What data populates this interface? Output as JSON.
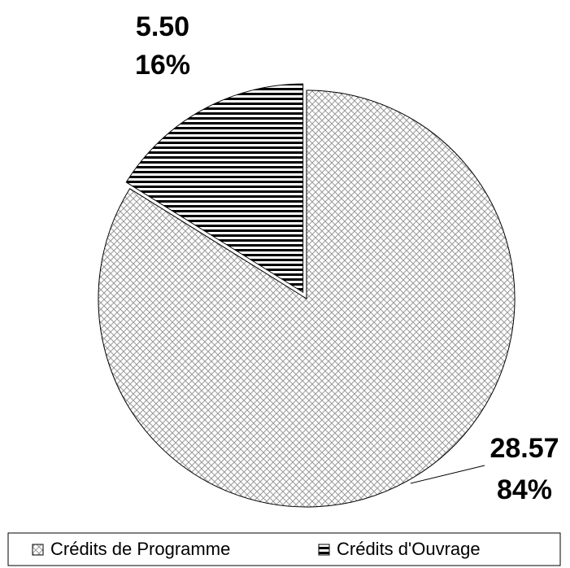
{
  "chart_data": {
    "type": "pie",
    "categories": [
      "Crédits de Programme",
      "Crédits d'Ouvrage"
    ],
    "values": [
      28.57,
      5.5
    ],
    "value_labels": [
      "28.57",
      "5.50"
    ],
    "percentages": [
      84,
      16
    ],
    "percentage_labels": [
      "84%",
      "16%"
    ],
    "legend": "bottom"
  }
}
